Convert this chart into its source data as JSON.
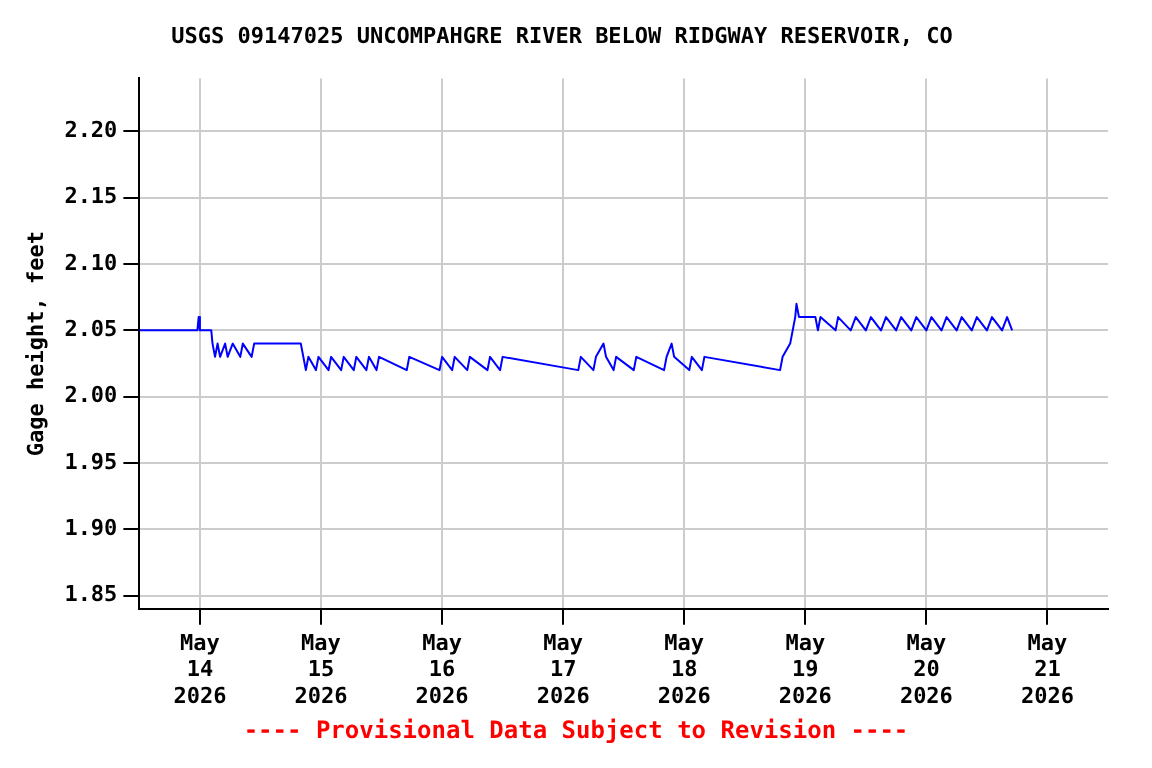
{
  "chart_data": {
    "type": "line",
    "title": "USGS 09147025 UNCOMPAHGRE RIVER BELOW RIDGWAY RESERVOIR, CO",
    "ylabel": "Gage height, feet",
    "annotations": [
      "---- Provisional Data Subject to Revision ----"
    ],
    "xlim": [
      "2026-05-13T12:00",
      "2026-05-21T12:00"
    ],
    "xticks": [
      {
        "value": "2026-05-14",
        "label": "May 14 2026"
      },
      {
        "value": "2026-05-15",
        "label": "May 15 2026"
      },
      {
        "value": "2026-05-16",
        "label": "May 16 2026"
      },
      {
        "value": "2026-05-17",
        "label": "May 17 2026"
      },
      {
        "value": "2026-05-18",
        "label": "May 18 2026"
      },
      {
        "value": "2026-05-19",
        "label": "May 19 2026"
      },
      {
        "value": "2026-05-20",
        "label": "May 20 2026"
      },
      {
        "value": "2026-05-21",
        "label": "May 21 2026"
      }
    ],
    "ylim": [
      1.84,
      2.24
    ],
    "yticks": [
      1.85,
      {
        "value": 1.9,
        "label": "1.90"
      },
      1.95,
      {
        "value": 2.0,
        "label": "2.00"
      },
      2.05,
      {
        "value": 2.1,
        "label": "2.10"
      },
      2.15,
      {
        "value": 2.2,
        "label": "2.20"
      }
    ],
    "grid": true,
    "legend": false,
    "marker": "none",
    "line_style": "solid",
    "series": [
      {
        "color": "#0000ff",
        "x": [
          "2026-05-13T12:00",
          "2026-05-13T23:30",
          "2026-05-13T23:45",
          "2026-05-14T00:00",
          "2026-05-14T02:15",
          "2026-05-14T02:30",
          "2026-05-14T03:00",
          "2026-05-14T03:30",
          "2026-05-14T04:00",
          "2026-05-14T05:00",
          "2026-05-14T05:30",
          "2026-05-14T06:30",
          "2026-05-14T08:00",
          "2026-05-14T08:30",
          "2026-05-14T10:15",
          "2026-05-14T10:45",
          "2026-05-14T20:00",
          "2026-05-14T20:30",
          "2026-05-14T21:00",
          "2026-05-14T21:30",
          "2026-05-14T23:00",
          "2026-05-14T23:30",
          "2026-05-15T01:30",
          "2026-05-15T02:00",
          "2026-05-15T04:00",
          "2026-05-15T04:30",
          "2026-05-15T06:30",
          "2026-05-15T07:00",
          "2026-05-15T09:00",
          "2026-05-15T09:30",
          "2026-05-15T11:00",
          "2026-05-15T11:30",
          "2026-05-15T17:00",
          "2026-05-15T17:30",
          "2026-05-15T23:30",
          "2026-05-16T00:00",
          "2026-05-16T02:00",
          "2026-05-16T02:30",
          "2026-05-16T05:00",
          "2026-05-16T05:30",
          "2026-05-16T09:00",
          "2026-05-16T09:30",
          "2026-05-16T11:30",
          "2026-05-16T12:00",
          "2026-05-17T03:00",
          "2026-05-17T03:30",
          "2026-05-17T06:00",
          "2026-05-17T06:30",
          "2026-05-17T08:00",
          "2026-05-17T08:30",
          "2026-05-17T10:00",
          "2026-05-17T10:30",
          "2026-05-17T14:00",
          "2026-05-17T14:30",
          "2026-05-17T20:00",
          "2026-05-17T20:30",
          "2026-05-17T21:30",
          "2026-05-17T22:00",
          "2026-05-18T01:00",
          "2026-05-18T01:30",
          "2026-05-18T03:30",
          "2026-05-18T04:00",
          "2026-05-18T19:00",
          "2026-05-18T19:30",
          "2026-05-18T21:00",
          "2026-05-18T21:30",
          "2026-05-18T22:00",
          "2026-05-18T22:15",
          "2026-05-18T22:45",
          "2026-05-19T02:00",
          "2026-05-19T02:30",
          "2026-05-19T03:00",
          "2026-05-19T06:00",
          "2026-05-19T06:30",
          "2026-05-19T09:00",
          "2026-05-19T10:00",
          "2026-05-19T12:00",
          "2026-05-19T13:00",
          "2026-05-19T15:00",
          "2026-05-19T16:00",
          "2026-05-19T18:00",
          "2026-05-19T19:00",
          "2026-05-19T21:00",
          "2026-05-19T22:00",
          "2026-05-20T00:00",
          "2026-05-20T01:00",
          "2026-05-20T03:00",
          "2026-05-20T04:00",
          "2026-05-20T06:00",
          "2026-05-20T07:00",
          "2026-05-20T09:00",
          "2026-05-20T10:00",
          "2026-05-20T12:00",
          "2026-05-20T13:00",
          "2026-05-20T15:00",
          "2026-05-20T16:00",
          "2026-05-20T17:00"
        ],
        "values": [
          2.05,
          2.05,
          2.06,
          2.05,
          2.05,
          2.04,
          2.03,
          2.04,
          2.03,
          2.04,
          2.03,
          2.04,
          2.03,
          2.04,
          2.03,
          2.04,
          2.04,
          2.03,
          2.02,
          2.03,
          2.02,
          2.03,
          2.02,
          2.03,
          2.02,
          2.03,
          2.02,
          2.03,
          2.02,
          2.03,
          2.02,
          2.03,
          2.02,
          2.03,
          2.02,
          2.03,
          2.02,
          2.03,
          2.02,
          2.03,
          2.02,
          2.03,
          2.02,
          2.03,
          2.02,
          2.03,
          2.02,
          2.03,
          2.04,
          2.03,
          2.02,
          2.03,
          2.02,
          2.03,
          2.02,
          2.03,
          2.04,
          2.03,
          2.02,
          2.03,
          2.02,
          2.03,
          2.02,
          2.03,
          2.04,
          2.05,
          2.06,
          2.07,
          2.06,
          2.06,
          2.05,
          2.06,
          2.05,
          2.06,
          2.05,
          2.06,
          2.05,
          2.06,
          2.05,
          2.06,
          2.05,
          2.06,
          2.05,
          2.06,
          2.05,
          2.06,
          2.05,
          2.06,
          2.05,
          2.06,
          2.05,
          2.06,
          2.05,
          2.06,
          2.05,
          2.06,
          2.05
        ]
      }
    ]
  }
}
